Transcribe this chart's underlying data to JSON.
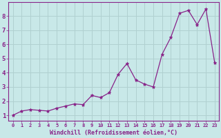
{
  "x": [
    0,
    1,
    2,
    3,
    4,
    5,
    6,
    7,
    8,
    9,
    10,
    11,
    12,
    13,
    14,
    15,
    16,
    17,
    18,
    19,
    20,
    21,
    22,
    23
  ],
  "y": [
    1.0,
    1.3,
    1.4,
    1.35,
    1.3,
    1.5,
    1.65,
    1.8,
    1.75,
    2.4,
    2.25,
    2.6,
    3.9,
    4.65,
    3.5,
    3.2,
    3.0,
    5.3,
    6.5,
    8.2,
    8.4,
    7.4,
    8.5,
    4.7
  ],
  "xlabel": "Windchill (Refroidissement éolien,°C)",
  "line_color": "#882288",
  "marker_color": "#882288",
  "bg_color": "#c8e8e8",
  "grid_color": "#b0d0d0",
  "text_color": "#882288",
  "ylim": [
    0.6,
    9.0
  ],
  "xlim": [
    -0.5,
    23.5
  ],
  "yticks": [
    1,
    2,
    3,
    4,
    5,
    6,
    7,
    8
  ],
  "xticks": [
    0,
    1,
    2,
    3,
    4,
    5,
    6,
    7,
    8,
    9,
    10,
    11,
    12,
    13,
    14,
    15,
    16,
    17,
    18,
    19,
    20,
    21,
    22,
    23
  ],
  "xlabel_fontsize": 6.0,
  "tick_fontsize_x": 5.0,
  "tick_fontsize_y": 6.5
}
